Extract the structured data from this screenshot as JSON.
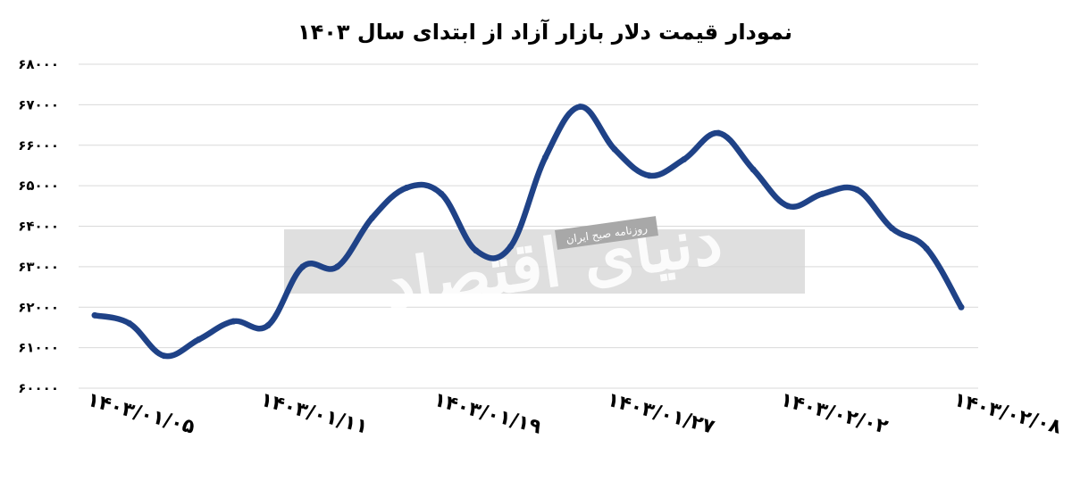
{
  "chart_data": {
    "type": "line",
    "title": "نمودار قیمت دلار بازار آزاد از ابتدای سال ۱۴۰۳",
    "xlabel": "",
    "ylabel": "",
    "ylim": [
      60000,
      68000
    ],
    "yticks": [
      60000,
      61000,
      62000,
      63000,
      64000,
      65000,
      66000,
      67000,
      68000
    ],
    "ytick_labels": [
      "۶۰۰۰۰",
      "۶۱۰۰۰",
      "۶۲۰۰۰",
      "۶۳۰۰۰",
      "۶۴۰۰۰",
      "۶۵۰۰۰",
      "۶۶۰۰۰",
      "۶۷۰۰۰",
      "۶۸۰۰۰"
    ],
    "x_tick_labels": [
      "۱۴۰۳/۰۱/۰۵",
      "۱۴۰۳/۰۱/۱۱",
      "۱۴۰۳/۰۱/۱۹",
      "۱۴۰۳/۰۱/۲۷",
      "۱۴۰۳/۰۲/۰۲",
      "۱۴۰۳/۰۲/۰۸"
    ],
    "grid": true,
    "series": [
      {
        "color": "#1f4287",
        "points": [
          {
            "x": "۱۴۰۳/۰۱/۰۵",
            "y": 61800
          },
          {
            "x": "",
            "y": 61600
          },
          {
            "x": "",
            "y": 60800
          },
          {
            "x": "",
            "y": 61200
          },
          {
            "x": "",
            "y": 61650
          },
          {
            "x": "۱۴۰۳/۰۱/۱۱",
            "y": 61550
          },
          {
            "x": "",
            "y": 63000
          },
          {
            "x": "",
            "y": 63000
          },
          {
            "x": "",
            "y": 64200
          },
          {
            "x": "",
            "y": 64950
          },
          {
            "x": "۱۴۰۳/۰۱/۱۹",
            "y": 64800
          },
          {
            "x": "",
            "y": 63400
          },
          {
            "x": "",
            "y": 63500
          },
          {
            "x": "",
            "y": 65700
          },
          {
            "x": "",
            "y": 66950
          },
          {
            "x": "۱۴۰۳/۰۱/۲۷",
            "y": 65900
          },
          {
            "x": "",
            "y": 65250
          },
          {
            "x": "",
            "y": 65650
          },
          {
            "x": "",
            "y": 66300
          },
          {
            "x": "",
            "y": 65400
          },
          {
            "x": "۱۴۰۳/۰۲/۰۲",
            "y": 64500
          },
          {
            "x": "",
            "y": 64800
          },
          {
            "x": "",
            "y": 64900
          },
          {
            "x": "",
            "y": 63950
          },
          {
            "x": "",
            "y": 63450
          },
          {
            "x": "۱۴۰۳/۰۲/۰۸",
            "y": 62000
          }
        ]
      }
    ]
  },
  "watermark": {
    "logo_text": "دنیای اقتصاد",
    "tagline": "روزنامه صبح ایران"
  }
}
